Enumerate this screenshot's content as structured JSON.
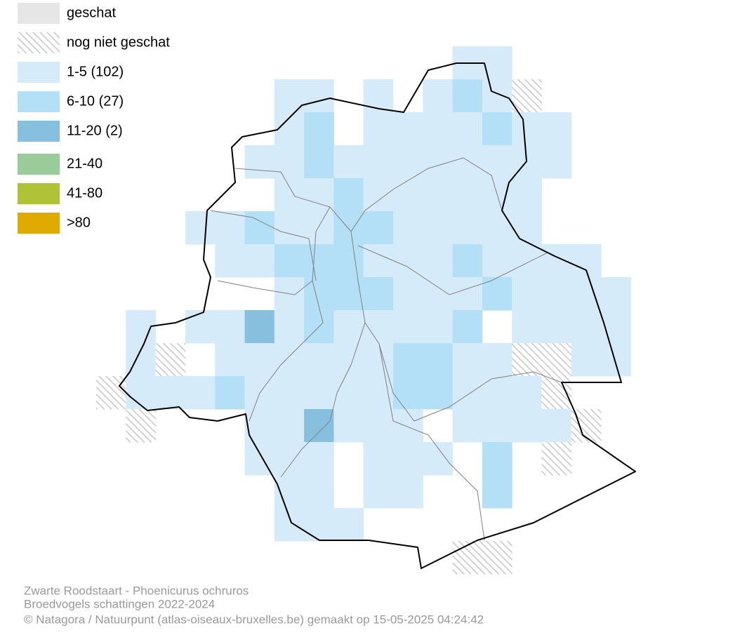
{
  "legend": {
    "items": [
      {
        "label": "geschat",
        "color": "#e6e6e6"
      },
      {
        "label": "nog niet geschat",
        "color": "#c8c8c8"
      },
      {
        "label": "1-5 (102)",
        "color": "#d6ebf9"
      },
      {
        "label": "6-10 (27)",
        "color": "#b3e0f7"
      },
      {
        "label": "11-20 (2)",
        "color": "#86c0de"
      },
      {
        "label": "21-40",
        "color": "#99cc99"
      },
      {
        "label": "41-80",
        "color": "#b0c236"
      },
      {
        "label": ">80",
        "color": "#e0aa00"
      }
    ]
  },
  "footer": {
    "lines": [
      "Zwarte Roodstaart - Phoenicurus ochruros",
      "Broedvogels schattingen 2022-2024",
      "© Natagora / Natuurpunt (atlas-oiseaux-bruxelles.be) gemaakt op 15-05-2025 04:24:42"
    ]
  }
}
